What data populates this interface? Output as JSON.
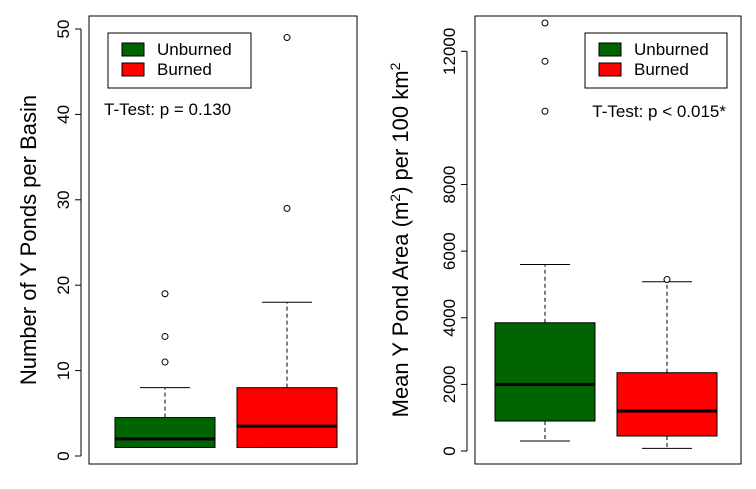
{
  "chart_data": [
    {
      "type": "box",
      "ylabel": "Number of Y Ponds per Basin",
      "ylim": [
        0,
        50
      ],
      "yticks": [
        0,
        10,
        20,
        30,
        40,
        50
      ],
      "legend": {
        "placement": "top-left",
        "entries": [
          {
            "name": "Unburned",
            "color": "#006400"
          },
          {
            "name": "Burned",
            "color": "#ff0000"
          }
        ]
      },
      "annotation": "T-Test: p = 0.130",
      "series": [
        {
          "name": "Unburned",
          "color": "#006400",
          "min": 1,
          "q1": 1,
          "median": 2,
          "q3": 4.5,
          "max": 8,
          "outliers": [
            11,
            14,
            19
          ]
        },
        {
          "name": "Burned",
          "color": "#ff0000",
          "min": 1,
          "q1": 1,
          "median": 3.5,
          "q3": 8,
          "max": 18,
          "outliers": [
            29,
            49
          ]
        }
      ]
    },
    {
      "type": "box",
      "ylabel_parts": [
        "Mean Y Pond Area (m",
        "2",
        ") per 100 km",
        "2"
      ],
      "ylim": [
        0,
        13000
      ],
      "yticks": [
        0,
        2000,
        4000,
        6000,
        8000,
        12000
      ],
      "legend": {
        "placement": "top-right",
        "entries": [
          {
            "name": "Unburned",
            "color": "#006400"
          },
          {
            "name": "Burned",
            "color": "#ff0000"
          }
        ]
      },
      "annotation": "T-Test: p < 0.015*",
      "series": [
        {
          "name": "Unburned",
          "color": "#006400",
          "min": 300,
          "q1": 900,
          "median": 2000,
          "q3": 3850,
          "max": 5600,
          "outliers": [
            10200,
            11700,
            12850
          ]
        },
        {
          "name": "Burned",
          "color": "#ff0000",
          "min": 80,
          "q1": 450,
          "median": 1200,
          "q3": 2350,
          "max": 5080,
          "outliers": [
            5150
          ]
        }
      ]
    }
  ]
}
